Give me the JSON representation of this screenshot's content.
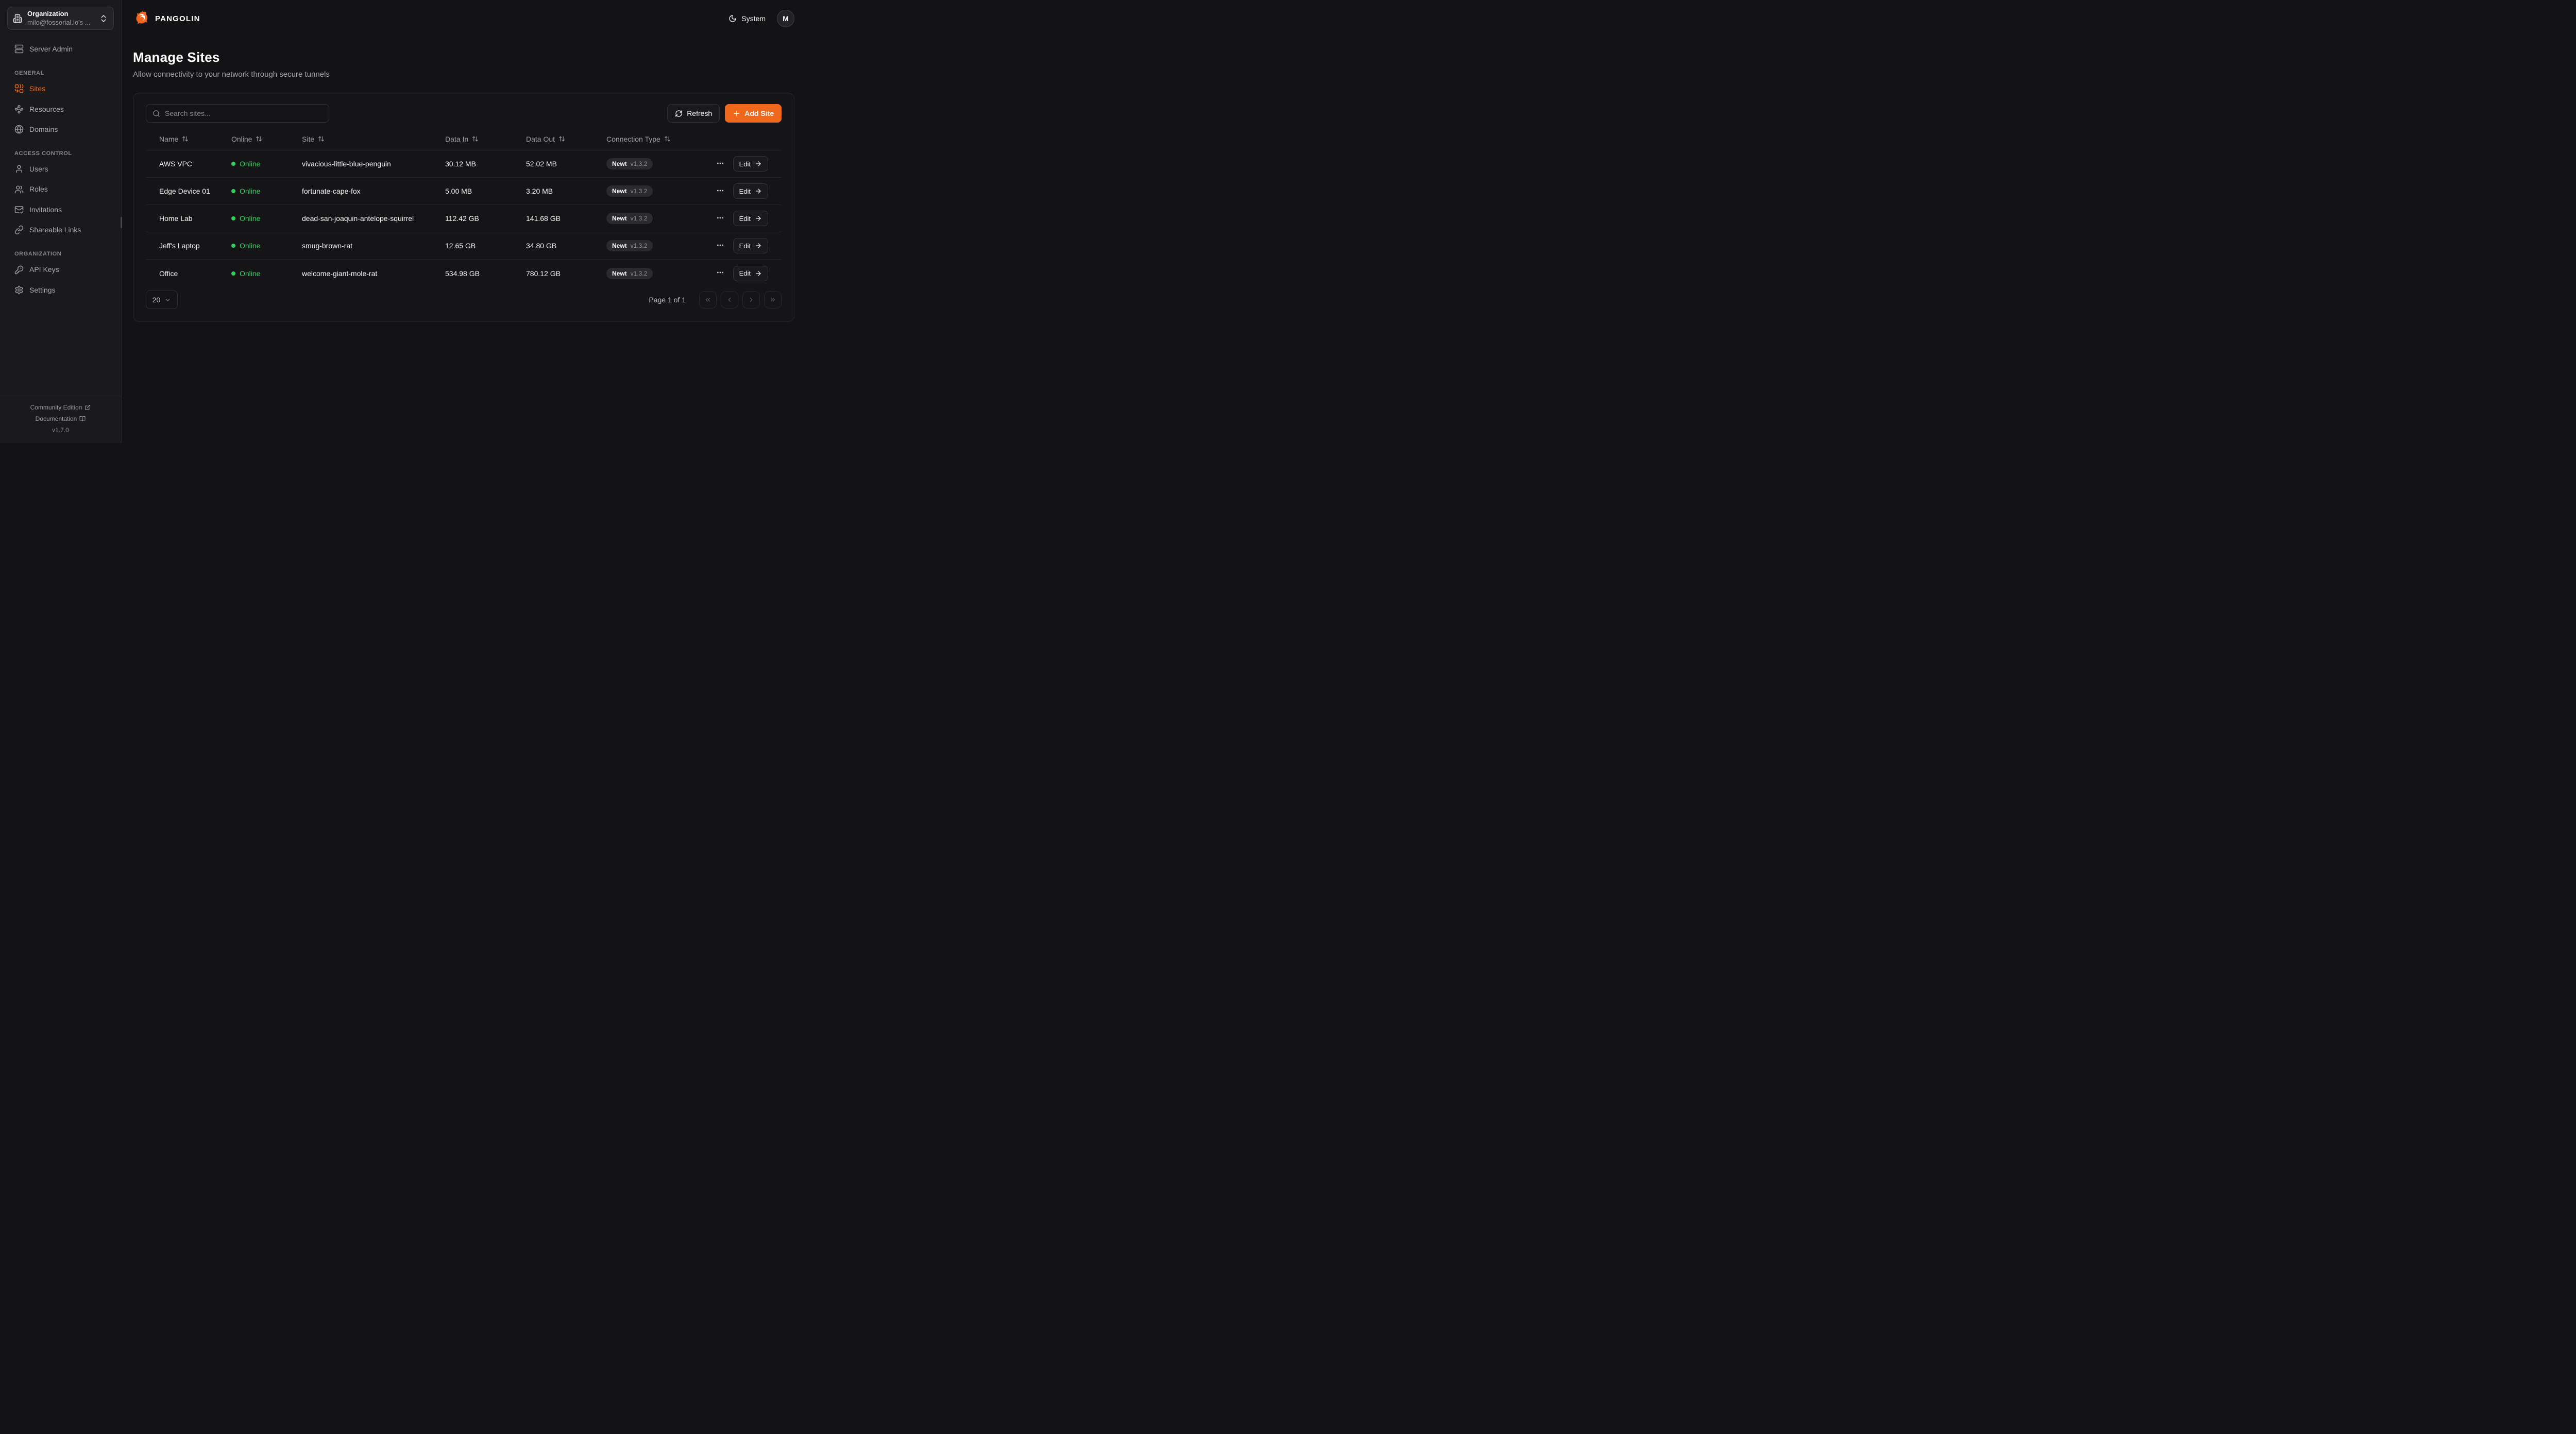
{
  "brand": {
    "name": "PANGOLIN"
  },
  "topbar": {
    "theme_label": "System",
    "avatar_initial": "M"
  },
  "sidebar": {
    "org": {
      "label": "Organization",
      "value": "milo@fossorial.io's ..."
    },
    "server_admin": {
      "label": "Server Admin",
      "icon": "server"
    },
    "sections": [
      {
        "label": "GENERAL",
        "items": [
          {
            "label": "Sites",
            "icon": "sites",
            "active": true
          },
          {
            "label": "Resources",
            "icon": "resources",
            "active": false
          },
          {
            "label": "Domains",
            "icon": "globe",
            "active": false
          }
        ]
      },
      {
        "label": "ACCESS CONTROL",
        "items": [
          {
            "label": "Users",
            "icon": "user",
            "active": false
          },
          {
            "label": "Roles",
            "icon": "users",
            "active": false
          },
          {
            "label": "Invitations",
            "icon": "mail-check",
            "active": false
          },
          {
            "label": "Shareable Links",
            "icon": "link",
            "active": false
          }
        ]
      },
      {
        "label": "ORGANIZATION",
        "items": [
          {
            "label": "API Keys",
            "icon": "key",
            "active": false
          },
          {
            "label": "Settings",
            "icon": "settings",
            "active": false
          }
        ]
      }
    ],
    "footer": {
      "community_label": "Community Edition",
      "documentation_label": "Documentation",
      "version": "v1.7.0"
    }
  },
  "page": {
    "title": "Manage Sites",
    "subtitle": "Allow connectivity to your network through secure tunnels"
  },
  "toolbar": {
    "search_placeholder": "Search sites...",
    "refresh_label": "Refresh",
    "add_label": "Add Site"
  },
  "table": {
    "columns": [
      {
        "label": "Name",
        "sortable": true
      },
      {
        "label": "Online",
        "sortable": true
      },
      {
        "label": "Site",
        "sortable": true
      },
      {
        "label": "Data In",
        "sortable": true
      },
      {
        "label": "Data Out",
        "sortable": true
      },
      {
        "label": "Connection Type",
        "sortable": true
      }
    ],
    "rows": [
      {
        "name": "AWS VPC",
        "status": "Online",
        "site": "vivacious-little-blue-penguin",
        "data_in": "30.12 MB",
        "data_out": "52.02 MB",
        "connection": {
          "client": "Newt",
          "version": "v1.3.2"
        },
        "edit_label": "Edit"
      },
      {
        "name": "Edge Device 01",
        "status": "Online",
        "site": "fortunate-cape-fox",
        "data_in": "5.00 MB",
        "data_out": "3.20 MB",
        "connection": {
          "client": "Newt",
          "version": "v1.3.2"
        },
        "edit_label": "Edit"
      },
      {
        "name": "Home Lab",
        "status": "Online",
        "site": "dead-san-joaquin-antelope-squirrel",
        "data_in": "112.42 GB",
        "data_out": "141.68 GB",
        "connection": {
          "client": "Newt",
          "version": "v1.3.2"
        },
        "edit_label": "Edit"
      },
      {
        "name": "Jeff's Laptop",
        "status": "Online",
        "site": "smug-brown-rat",
        "data_in": "12.65 GB",
        "data_out": "34.80 GB",
        "connection": {
          "client": "Newt",
          "version": "v1.3.2"
        },
        "edit_label": "Edit"
      },
      {
        "name": "Office",
        "status": "Online",
        "site": "welcome-giant-mole-rat",
        "data_in": "534.98 GB",
        "data_out": "780.12 GB",
        "connection": {
          "client": "Newt",
          "version": "v1.3.2"
        },
        "edit_label": "Edit"
      }
    ]
  },
  "pagination": {
    "page_size": "20",
    "page_info": "Page 1 of 1"
  },
  "colors": {
    "accent": "#F0681C",
    "online_green": "#2FD05E"
  }
}
